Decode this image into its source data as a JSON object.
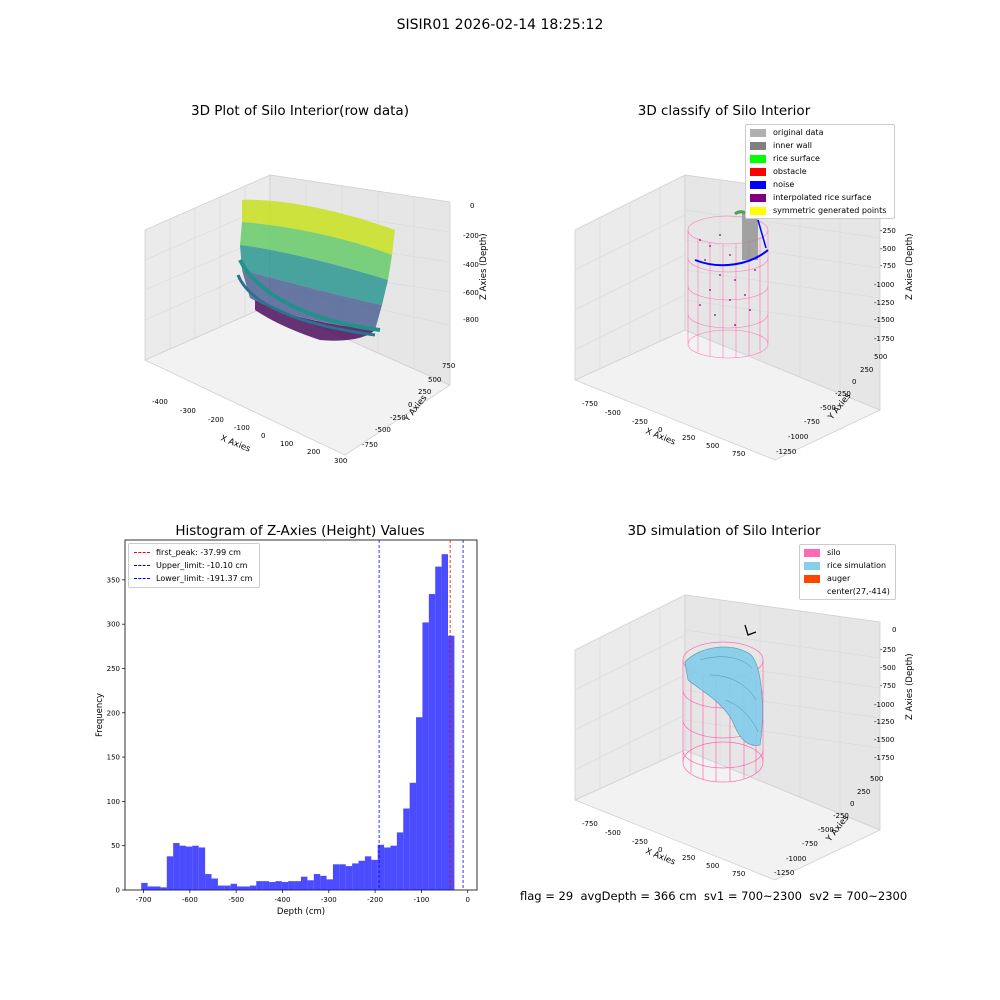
{
  "suptitle": "SISIR01 2026-02-14 18:25:12",
  "panels": {
    "raw": {
      "title": "3D Plot of Silo Interior(row data)",
      "xlabel": "X Axies",
      "ylabel": "Y Axies",
      "zlabel": "Z Axies (Depth)",
      "xticks": [
        "-400",
        "-300",
        "-200",
        "-100",
        "0",
        "100",
        "200",
        "300"
      ],
      "yticks": [
        "750",
        "500",
        "250",
        "0",
        "-250",
        "-500",
        "-750"
      ],
      "zticks": [
        "0",
        "-200",
        "-400",
        "-600",
        "-800"
      ]
    },
    "classify": {
      "title": "3D classify of Silo Interior",
      "xlabel": "X Axies",
      "ylabel": "Y Axies",
      "zlabel": "Z Axies (Depth)",
      "xticks": [
        "-750",
        "-500",
        "-250",
        "0",
        "250",
        "500",
        "750"
      ],
      "yticks": [
        "500",
        "250",
        "0",
        "-250",
        "-500",
        "-750",
        "-1000",
        "-1250"
      ],
      "zticks": [
        "0",
        "-250",
        "-500",
        "-750",
        "-1000",
        "-1250",
        "-1500",
        "-1750"
      ],
      "legend": [
        {
          "label": "original data",
          "color": "#b0b0b0"
        },
        {
          "label": "inner wall",
          "color": "#808080"
        },
        {
          "label": "rice surface",
          "color": "#00ff00"
        },
        {
          "label": "obstacle",
          "color": "#ff0000"
        },
        {
          "label": "noise",
          "color": "#0000ff"
        },
        {
          "label": "interpolated rice surface",
          "color": "#800080"
        },
        {
          "label": "symmetric generated points",
          "color": "#ffff00"
        }
      ]
    },
    "simulation": {
      "title": "3D simulation of Silo Interior",
      "xlabel": "X Axies",
      "ylabel": "Y Axies",
      "zlabel": "Z Axies (Depth)",
      "xticks": [
        "-750",
        "-500",
        "-250",
        "0",
        "250",
        "500",
        "750"
      ],
      "yticks": [
        "500",
        "250",
        "0",
        "-250",
        "-500",
        "-750",
        "-1000",
        "-1250"
      ],
      "zticks": [
        "0",
        "-250",
        "-500",
        "-750",
        "-1000",
        "-1250",
        "-1500",
        "-1750"
      ],
      "legend": [
        {
          "label": "silo",
          "color": "#ff69b4"
        },
        {
          "label": "rice simulation",
          "color": "#87ceeb"
        },
        {
          "label": "auger",
          "color": "#ff4500"
        },
        {
          "label": "center(27,-414)",
          "color": ""
        }
      ]
    }
  },
  "chart_data": {
    "type": "bar",
    "title": "Histogram of Z-Axies (Height) Values",
    "xlabel": "Depth (cm)",
    "ylabel": "Frequency",
    "xlim": [
      -740,
      20
    ],
    "ylim": [
      0,
      395
    ],
    "xticks": [
      -700,
      -600,
      -500,
      -400,
      -300,
      -200,
      -100,
      0
    ],
    "yticks": [
      0,
      50,
      100,
      150,
      200,
      250,
      300,
      350
    ],
    "bin_width": 13.8,
    "bin_start": -705,
    "color": "#0000ff",
    "values": [
      8,
      4,
      4,
      3,
      38,
      53,
      50,
      49,
      50,
      48,
      18,
      13,
      5,
      5,
      7,
      4,
      4,
      5,
      10,
      10,
      9,
      10,
      9,
      10,
      10,
      15,
      11,
      18,
      16,
      12,
      29,
      29,
      27,
      30,
      33,
      38,
      34,
      51,
      48,
      50,
      65,
      92,
      121,
      195,
      302,
      334,
      365,
      379,
      287
    ],
    "lines": [
      {
        "label": "first_peak: -37.99 cm",
        "value": -37.99,
        "color": "#ff0000"
      },
      {
        "label": "Upper_limit: -10.10 cm",
        "value": -10.1,
        "color": "#0000ff"
      },
      {
        "label": "Lower_limit: -191.37 cm",
        "value": -191.37,
        "color": "#0000ff"
      }
    ],
    "legend_position": "top-left",
    "grid": false
  },
  "footer": "flag = 29  avgDepth = 366 cm  sv1 = 700~2300  sv2 = 700~2300"
}
